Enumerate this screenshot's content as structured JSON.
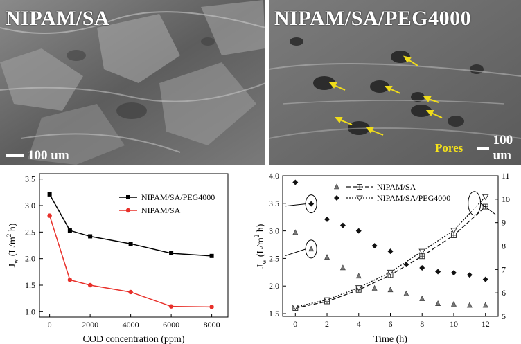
{
  "panels": {
    "sem_left": {
      "title": "NIPAM/SA",
      "scale": "100 um"
    },
    "sem_right": {
      "title": "NIPAM/SA/PEG4000",
      "scale": "100 um",
      "annotation": "Pores"
    }
  },
  "chart_data": [
    {
      "type": "line",
      "title": "",
      "xlabel": "COD concentration (ppm)",
      "ylabel": "J_w (L/m^2 h)",
      "xlim": [
        -500,
        8800
      ],
      "ylim": [
        0.9,
        3.6
      ],
      "xticks": [
        0,
        2000,
        4000,
        6000,
        8000
      ],
      "yticks": [
        1.0,
        1.5,
        2.0,
        2.5,
        3.0,
        3.5
      ],
      "legend_position": "top-right",
      "series": [
        {
          "name": "NIPAM/SA/PEG4000",
          "color": "#000000",
          "marker": "square",
          "x": [
            0,
            1000,
            2000,
            4000,
            6000,
            8000
          ],
          "values": [
            3.21,
            2.53,
            2.42,
            2.28,
            2.1,
            2.05
          ]
        },
        {
          "name": "NIPAM/SA",
          "color": "#e8302a",
          "marker": "circle",
          "x": [
            0,
            1000,
            2000,
            4000,
            6000,
            8000
          ],
          "values": [
            2.81,
            1.6,
            1.5,
            1.37,
            1.1,
            1.09
          ]
        }
      ]
    },
    {
      "type": "scatter",
      "title": "",
      "xlabel": "Time (h)",
      "ylabel": "J_w (L/m^2 h)",
      "xlim": [
        -0.8,
        12.8
      ],
      "ylim": [
        1.45,
        4.0
      ],
      "y2lim": [
        5,
        11
      ],
      "xticks": [
        0,
        2,
        4,
        6,
        8,
        10,
        12
      ],
      "yticks": [
        1.5,
        2.0,
        2.5,
        3.0,
        3.5,
        4.0
      ],
      "y2ticks": [
        5,
        6,
        7,
        8,
        9,
        10,
        11
      ],
      "legend_position": "top-right",
      "series": [
        {
          "name": "NIPAM/SA",
          "axis": "left",
          "style": "dashed",
          "marker": "square-cross",
          "x": [
            0,
            2,
            4,
            6,
            8,
            10,
            12
          ],
          "values": [
            1.6,
            1.72,
            1.93,
            2.2,
            2.54,
            2.92,
            3.44
          ]
        },
        {
          "name": "NIPAM/SA/PEG4000",
          "axis": "left",
          "style": "dotted",
          "marker": "triangle-down",
          "x": [
            0,
            2,
            4,
            6,
            8,
            10,
            12
          ],
          "values": [
            1.62,
            1.75,
            1.97,
            2.25,
            2.63,
            3.01,
            3.62
          ]
        },
        {
          "name": "",
          "axis": "left",
          "marker": "triangle",
          "x": [
            0,
            1,
            2,
            3,
            4,
            5,
            6,
            7,
            8,
            9,
            10,
            11,
            12
          ],
          "values": [
            2.97,
            2.67,
            2.52,
            2.33,
            2.18,
            1.96,
            1.93,
            1.86,
            1.77,
            1.68,
            1.67,
            1.65,
            1.65
          ]
        },
        {
          "name": "",
          "axis": "left",
          "marker": "diamond",
          "x": [
            0,
            1,
            2,
            3,
            4,
            5,
            6,
            7,
            8,
            9,
            10,
            11,
            12
          ],
          "values": [
            3.88,
            3.49,
            3.21,
            3.1,
            3.0,
            2.73,
            2.63,
            2.39,
            2.33,
            2.26,
            2.24,
            2.2,
            2.12
          ]
        }
      ]
    }
  ]
}
